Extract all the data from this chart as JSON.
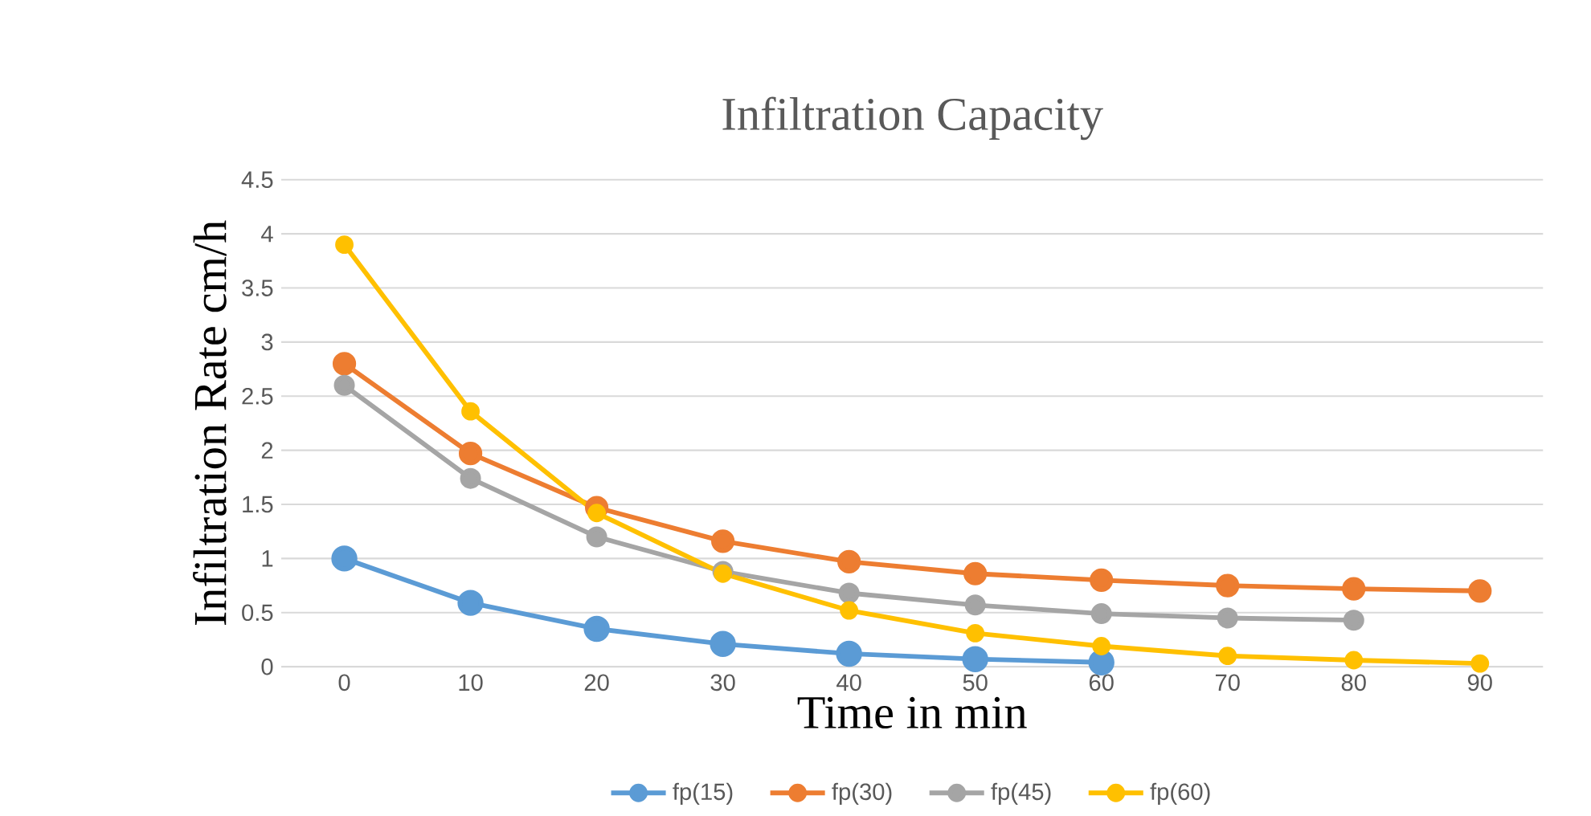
{
  "chart_data": {
    "type": "line",
    "title": "Infiltration Capacity",
    "xlabel": "Time in min",
    "ylabel": "Infiltration Rate cm/h",
    "categories": [
      "0",
      "10",
      "20",
      "30",
      "40",
      "50",
      "60",
      "70",
      "80",
      "90"
    ],
    "series": [
      {
        "name": "fp(15)",
        "color": "#5b9bd5",
        "values": [
          1.0,
          0.59,
          0.35,
          0.21,
          0.12,
          0.07,
          0.04,
          null,
          null,
          null
        ]
      },
      {
        "name": "fp(30)",
        "color": "#ed7d31",
        "values": [
          2.8,
          1.97,
          1.47,
          1.16,
          0.97,
          0.86,
          0.8,
          0.75,
          0.72,
          0.7
        ]
      },
      {
        "name": "fp(45)",
        "color": "#a5a5a5",
        "values": [
          2.6,
          1.74,
          1.2,
          0.88,
          0.68,
          0.57,
          0.49,
          0.45,
          0.43,
          null
        ]
      },
      {
        "name": "fp(60)",
        "color": "#ffc000",
        "values": [
          3.9,
          2.36,
          1.42,
          0.86,
          0.52,
          0.31,
          0.19,
          0.1,
          0.06,
          0.03
        ]
      }
    ],
    "ylim": [
      0,
      4.5
    ],
    "yticks": [
      0,
      0.5,
      1,
      1.5,
      2,
      2.5,
      3,
      3.5,
      4,
      4.5
    ],
    "grid": "y",
    "legend": "bottom",
    "marker": "circle",
    "line_style": "solid"
  }
}
